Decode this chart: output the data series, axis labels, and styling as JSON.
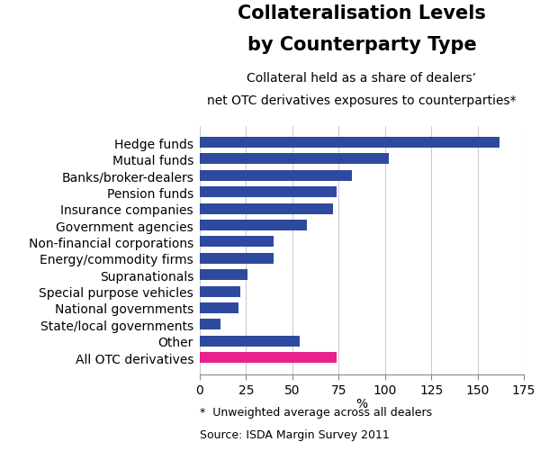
{
  "title_line1": "Collateralisation Levels",
  "title_line2": "by Counterparty Type",
  "subtitle_line1": "Collateral held as a share of dealers’",
  "subtitle_line2": "net OTC derivatives exposures to counterparties*",
  "xlabel": "%",
  "footnote1": "*  Unweighted average across all dealers",
  "footnote2": "Source: ISDA Margin Survey 2011",
  "categories": [
    "Hedge funds",
    "Mutual funds",
    "Banks/broker-dealers",
    "Pension funds",
    "Insurance companies",
    "Government agencies",
    "Non-financial corporations",
    "Energy/commodity firms",
    "Supranationals",
    "Special purpose vehicles",
    "National governments",
    "State/local governments",
    "Other",
    "All OTC derivatives"
  ],
  "values": [
    162,
    102,
    82,
    74,
    72,
    58,
    40,
    40,
    26,
    22,
    21,
    11,
    54,
    74
  ],
  "colors": [
    "#2E4A9E",
    "#2E4A9E",
    "#2E4A9E",
    "#2E4A9E",
    "#2E4A9E",
    "#2E4A9E",
    "#2E4A9E",
    "#2E4A9E",
    "#2E4A9E",
    "#2E4A9E",
    "#2E4A9E",
    "#2E4A9E",
    "#2E4A9E",
    "#E8218C"
  ],
  "xlim": [
    0,
    175
  ],
  "xticks": [
    0,
    25,
    50,
    75,
    100,
    125,
    150,
    175
  ],
  "background_color": "#FFFFFF",
  "grid_color": "#CCCCCC",
  "bar_height": 0.65,
  "title_fontsize": 15,
  "subtitle_fontsize": 10,
  "label_fontsize": 10,
  "tick_fontsize": 10,
  "footnote_fontsize": 9
}
